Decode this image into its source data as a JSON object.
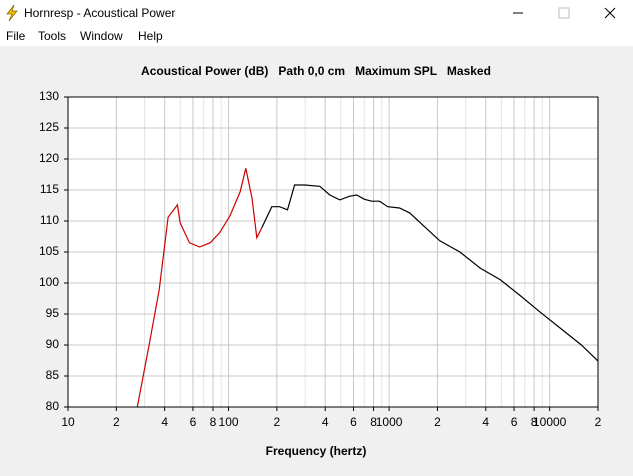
{
  "window": {
    "title": "Hornresp - Acoustical Power",
    "menu": [
      "File",
      "Tools",
      "Window",
      "Help"
    ]
  },
  "chart_data": {
    "type": "line",
    "title": "Acoustical Power (dB)   Path 0,0 cm   Maximum SPL   Masked",
    "x_label": "Frequency (hertz)",
    "xscale": "log",
    "xlim": [
      10,
      20000
    ],
    "xticks": [
      10,
      {
        "value": 20,
        "label": "2"
      },
      {
        "value": 40,
        "label": "4"
      },
      {
        "value": 60,
        "label": "6"
      },
      {
        "value": 80,
        "label": "8"
      },
      100,
      {
        "value": 200,
        "label": "2"
      },
      {
        "value": 400,
        "label": "4"
      },
      {
        "value": 600,
        "label": "6"
      },
      {
        "value": 800,
        "label": "8"
      },
      1000,
      {
        "value": 2000,
        "label": "2"
      },
      {
        "value": 4000,
        "label": "4"
      },
      {
        "value": 6000,
        "label": "6"
      },
      {
        "value": 8000,
        "label": "8"
      },
      10000,
      {
        "value": 20000,
        "label": "2"
      }
    ],
    "x_minor_grid": [
      30,
      50,
      70,
      90,
      300,
      500,
      700,
      900,
      3000,
      5000,
      7000,
      9000
    ],
    "ylim": [
      80,
      130
    ],
    "yticks": [
      80,
      85,
      90,
      95,
      100,
      105,
      110,
      115,
      120,
      125,
      130
    ],
    "grid": true,
    "series": [
      {
        "color": "#cc0000",
        "x": [
          27,
          32,
          37,
          42,
          48,
          50,
          57,
          66,
          77,
          88,
          102,
          118,
          128,
          140,
          150,
          161
        ],
        "values": [
          80,
          90,
          98.9,
          110.6,
          112.6,
          109.7,
          106.5,
          105.8,
          106.5,
          108.1,
          110.8,
          114.7,
          118.5,
          113.7,
          107.3,
          108.9
        ]
      },
      {
        "color": "#000000",
        "x": [
          161,
          186,
          208,
          233,
          258,
          298,
          370,
          427,
          493,
          568,
          628,
          703,
          778,
          871,
          980,
          1160,
          1343,
          1550,
          2070,
          2760,
          3690,
          4940,
          6600,
          8830,
          11800,
          15770,
          20000
        ],
        "values": [
          108.9,
          112.3,
          112.3,
          111.8,
          115.8,
          115.8,
          115.6,
          114.2,
          113.4,
          114,
          114.2,
          113.5,
          113.2,
          113.2,
          112.3,
          112.1,
          111.3,
          109.8,
          106.8,
          105,
          102.4,
          100.5,
          97.9,
          95.2,
          92.6,
          90,
          87.4
        ]
      }
    ]
  }
}
